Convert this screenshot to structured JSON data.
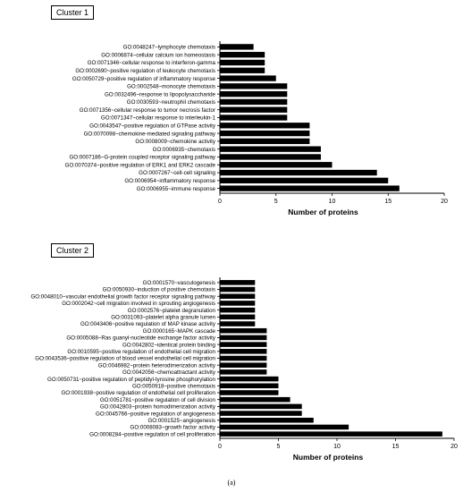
{
  "caption": "(a)",
  "chart_data": [
    {
      "type": "bar",
      "orientation": "horizontal",
      "panel_label": "Cluster 1",
      "xlabel": "Number of proteins",
      "xlim": [
        0,
        20
      ],
      "xticks": [
        0,
        5,
        10,
        15,
        20
      ],
      "categories": [
        "GO:0048247~lymphocyte chemotaxis",
        "GO:0006874~cellular calcium ion homeostasis",
        "GO:0071346~cellular response to interferon-gamma",
        "GO:0002690~positive regulation of leukocyte chemotaxis",
        "GO:0050729~positive regulation of inflammatory response",
        "GO:0002548~monocyte chemotaxis",
        "GO:0032496~response to lipopolysaccharide",
        "GO:0030593~neutrophil chemotaxis",
        "GO:0071356~cellular response to tumor necrosis factor",
        "GO:0071347~cellular response to interleukin-1",
        "GO:0043547~positive regulation of GTPase activity",
        "GO:0070098~chemokine-mediated signaling pathway",
        "GO:0008009~chemokine activity",
        "GO:0006935~chemotaxis",
        "GO:0007186~G-protein coupled receptor signaling pathway",
        "GO:0070374~positive regulation of ERK1 and ERK2 cascade",
        "GO:0007267~cell-cell signaling",
        "GO:0006954~inflammatory response",
        "GO:0006955~immune response"
      ],
      "values": [
        3,
        4,
        4,
        4,
        5,
        6,
        6,
        6,
        6,
        6,
        8,
        8,
        8,
        9,
        9,
        10,
        14,
        15,
        16
      ],
      "bar_color": "#000000"
    },
    {
      "type": "bar",
      "orientation": "horizontal",
      "panel_label": "Cluster 2",
      "xlabel": "Number of proteins",
      "xlim": [
        0,
        20
      ],
      "xticks": [
        0,
        5,
        10,
        15,
        20
      ],
      "categories": [
        "GO:0001570~vasculogenesis",
        "GO:0050930~induction of positive chemotaxis",
        "GO:0048010~vascular endothelial growth factor receptor signaling pathway",
        "GO:0002042~cell migration involved in sprouting angiogenesis",
        "GO:0002576~platelet degranulation",
        "GO:0031093~platelet alpha granule lumen",
        "GO:0043406~positive regulation of MAP kinase activity",
        "GO:0000165~MAPK cascade",
        "GO:0005088~Ras guanyl-nucleotide exchange factor activity",
        "GO:0042802~identical protein binding",
        "GO:0010595~positive regulation of endothelial cell migration",
        "GO:0043536~positive regulation of blood vessel endothelial cell migration",
        "GO:0046982~protein heterodimerization activity",
        "GO:0042056~chemoattractant activity",
        "GO:0050731~positive regulation of peptidyl-tyrosine phosphorylation",
        "GO:0050918~positive chemotaxis",
        "GO:0001938~positive regulation of endothelial cell proliferation",
        "GO:0051781~positive regulation of cell division",
        "GO:0042803~protein homodimerization activity",
        "GO:0045766~positive regulation of angiogenesis",
        "GO:0001525~angiogenesis",
        "GO:0008083~growth factor activity",
        "GO:0008284~positive regulation of cell proliferation"
      ],
      "values": [
        3,
        3,
        3,
        3,
        3,
        3,
        3,
        4,
        4,
        4,
        4,
        4,
        4,
        4,
        5,
        5,
        5,
        6,
        7,
        7,
        8,
        11,
        19
      ],
      "bar_color": "#000000"
    }
  ]
}
